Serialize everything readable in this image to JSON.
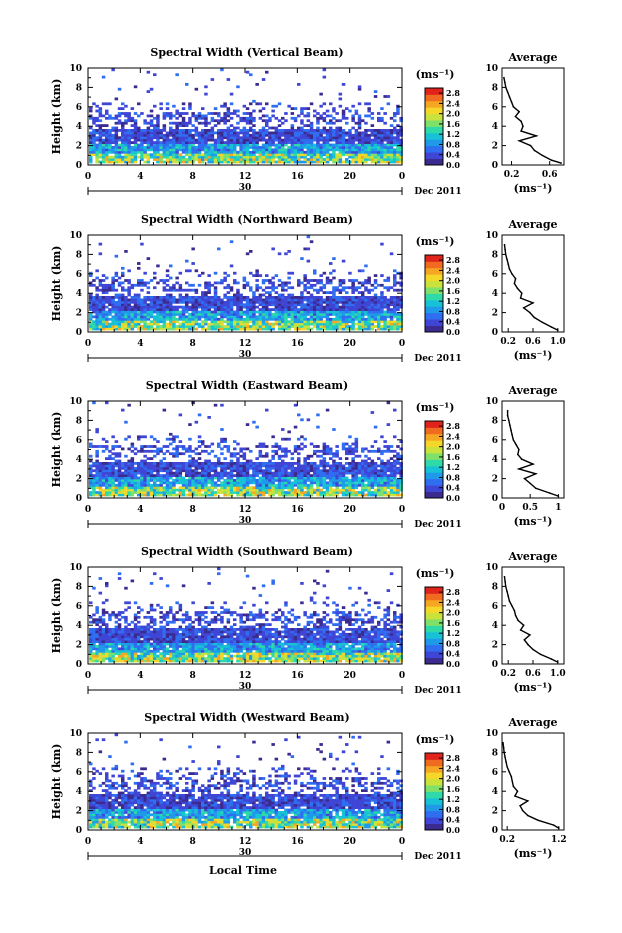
{
  "chart_data": [
    {
      "type": "heatmap",
      "title": "Spectral Width (Vertical Beam)",
      "ylabel": "Height (km)",
      "xlabel": "",
      "x_ticks": [
        "0",
        "4",
        "8",
        "12",
        "16",
        "20",
        "0"
      ],
      "xlim": [
        0,
        24
      ],
      "y_ticks": [
        "0",
        "2",
        "4",
        "6",
        "8",
        "10"
      ],
      "ylim": [
        0,
        10
      ],
      "date_marker": "30",
      "date_label": "Dec 2011",
      "colorbar": {
        "unit": "(ms⁻¹)",
        "ticks": [
          "0.0",
          "0.4",
          "0.8",
          "1.2",
          "1.6",
          "2.0",
          "2.4",
          "2.8"
        ],
        "range": [
          0,
          3.0
        ]
      },
      "average": {
        "title": "Average",
        "xlabel": "(ms⁻¹)",
        "x_ticks": [
          "0.2",
          "0.6"
        ],
        "xlim": [
          0.1,
          0.75
        ],
        "height": [
          0.2,
          0.5,
          1,
          1.5,
          2,
          2.5,
          3,
          3.5,
          4,
          4.5,
          5,
          5.5,
          6,
          6.5,
          7,
          7.5,
          8,
          8.5,
          9
        ],
        "value": [
          0.72,
          0.62,
          0.52,
          0.44,
          0.4,
          0.28,
          0.46,
          0.3,
          0.32,
          0.3,
          0.24,
          0.28,
          0.22,
          0.2,
          0.18,
          0.16,
          0.14,
          0.13,
          0.12
        ]
      }
    },
    {
      "type": "heatmap",
      "title": "Spectral Width (Northward Beam)",
      "ylabel": "Height (km)",
      "xlabel": "",
      "x_ticks": [
        "0",
        "4",
        "8",
        "12",
        "16",
        "20",
        "0"
      ],
      "xlim": [
        0,
        24
      ],
      "y_ticks": [
        "0",
        "2",
        "4",
        "6",
        "8",
        "10"
      ],
      "ylim": [
        0,
        10
      ],
      "date_marker": "30",
      "date_label": "Dec 2011",
      "colorbar": {
        "unit": "(ms⁻¹)",
        "ticks": [
          "0.0",
          "0.4",
          "0.8",
          "1.2",
          "1.6",
          "2.0",
          "2.4",
          "2.8"
        ],
        "range": [
          0,
          3.0
        ]
      },
      "average": {
        "title": "Average",
        "xlabel": "(ms⁻¹)",
        "x_ticks": [
          "0.2",
          "0.6",
          "1.0"
        ],
        "xlim": [
          0.1,
          1.1
        ],
        "height": [
          0.2,
          0.5,
          1,
          1.5,
          2,
          2.5,
          3,
          3.5,
          4,
          4.5,
          5,
          5.5,
          6,
          6.5,
          7,
          7.5,
          8,
          8.5,
          9
        ],
        "value": [
          1.0,
          0.9,
          0.75,
          0.62,
          0.55,
          0.45,
          0.6,
          0.4,
          0.42,
          0.35,
          0.3,
          0.32,
          0.26,
          0.22,
          0.2,
          0.18,
          0.16,
          0.15,
          0.14
        ]
      }
    },
    {
      "type": "heatmap",
      "title": "Spectral Width (Eastward Beam)",
      "ylabel": "Height (km)",
      "xlabel": "",
      "x_ticks": [
        "0",
        "4",
        "8",
        "12",
        "16",
        "20",
        "0"
      ],
      "xlim": [
        0,
        24
      ],
      "y_ticks": [
        "0",
        "2",
        "4",
        "6",
        "8",
        "10"
      ],
      "ylim": [
        0,
        10
      ],
      "date_marker": "30",
      "date_label": "Dec 2011",
      "colorbar": {
        "unit": "(ms⁻¹)",
        "ticks": [
          "0.0",
          "0.4",
          "0.8",
          "1.2",
          "1.6",
          "2.0",
          "2.4",
          "2.8"
        ],
        "range": [
          0,
          3.0
        ]
      },
      "average": {
        "title": "Average",
        "xlabel": "(ms⁻¹)",
        "x_ticks": [
          "0",
          "0.5",
          "1"
        ],
        "xlim": [
          0,
          1.1
        ],
        "height": [
          0.2,
          0.5,
          1,
          1.5,
          2,
          2.5,
          3,
          3.5,
          4,
          4.5,
          5,
          5.5,
          6,
          6.5,
          7,
          7.5,
          8,
          8.5,
          9
        ],
        "value": [
          1.0,
          0.85,
          0.6,
          0.5,
          0.4,
          0.6,
          0.3,
          0.55,
          0.35,
          0.28,
          0.3,
          0.25,
          0.2,
          0.18,
          0.16,
          0.14,
          0.12,
          0.1,
          0.1
        ]
      }
    },
    {
      "type": "heatmap",
      "title": "Spectral Width (Southward Beam)",
      "ylabel": "Height (km)",
      "xlabel": "",
      "x_ticks": [
        "0",
        "4",
        "8",
        "12",
        "16",
        "20",
        "0"
      ],
      "xlim": [
        0,
        24
      ],
      "y_ticks": [
        "0",
        "2",
        "4",
        "6",
        "8",
        "10"
      ],
      "ylim": [
        0,
        10
      ],
      "date_marker": "30",
      "date_label": "Dec 2011",
      "colorbar": {
        "unit": "(ms⁻¹)",
        "ticks": [
          "0.0",
          "0.4",
          "0.8",
          "1.2",
          "1.6",
          "2.0",
          "2.4",
          "2.8"
        ],
        "range": [
          0,
          3.0
        ]
      },
      "average": {
        "title": "Average",
        "xlabel": "(ms⁻¹)",
        "x_ticks": [
          "0.2",
          "0.6",
          "1.0"
        ],
        "xlim": [
          0.1,
          1.1
        ],
        "height": [
          0.2,
          0.5,
          1,
          1.5,
          2,
          2.5,
          3,
          3.5,
          4,
          4.5,
          5,
          5.5,
          6,
          6.5,
          7,
          7.5,
          8,
          8.5,
          9
        ],
        "value": [
          1.0,
          0.9,
          0.72,
          0.6,
          0.52,
          0.46,
          0.55,
          0.4,
          0.45,
          0.36,
          0.32,
          0.3,
          0.26,
          0.22,
          0.2,
          0.18,
          0.16,
          0.15,
          0.14
        ]
      }
    },
    {
      "type": "heatmap",
      "title": "Spectral Width (Westward Beam)",
      "ylabel": "Height (km)",
      "xlabel": "Local Time",
      "x_ticks": [
        "0",
        "4",
        "8",
        "12",
        "16",
        "20",
        "0"
      ],
      "xlim": [
        0,
        24
      ],
      "y_ticks": [
        "0",
        "2",
        "4",
        "6",
        "8",
        "10"
      ],
      "ylim": [
        0,
        10
      ],
      "date_marker": "30",
      "date_label": "Dec 2011",
      "colorbar": {
        "unit": "(ms⁻¹)",
        "ticks": [
          "0.0",
          "0.4",
          "0.8",
          "1.2",
          "1.6",
          "2.0",
          "2.4",
          "2.8"
        ],
        "range": [
          0,
          3.0
        ]
      },
      "average": {
        "title": "Average",
        "xlabel": "(ms⁻¹)",
        "x_ticks": [
          "0.2",
          "1.2"
        ],
        "xlim": [
          0.1,
          1.3
        ],
        "height": [
          0.2,
          0.5,
          1,
          1.5,
          2,
          2.5,
          3,
          3.5,
          4,
          4.5,
          5,
          5.5,
          6,
          6.5,
          7,
          7.5,
          8,
          8.5,
          9
        ],
        "value": [
          1.2,
          1.1,
          0.8,
          0.6,
          0.5,
          0.45,
          0.6,
          0.35,
          0.4,
          0.32,
          0.3,
          0.28,
          0.24,
          0.2,
          0.18,
          0.16,
          0.14,
          0.13,
          0.12
        ]
      }
    }
  ],
  "colors": {
    "colormap": [
      "#3b2b8f",
      "#3f46d6",
      "#2f6ef0",
      "#1f9ae8",
      "#17c2d6",
      "#2fd9a8",
      "#7fe06a",
      "#c9e23c",
      "#f5d72a",
      "#f5a623",
      "#f06a1f",
      "#e0241b"
    ],
    "line": "#000000"
  }
}
